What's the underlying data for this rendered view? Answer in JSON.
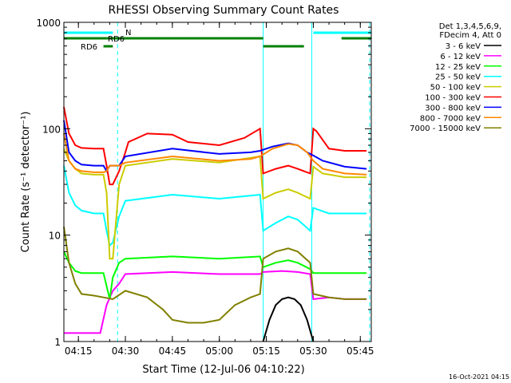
{
  "chart_data": {
    "type": "line",
    "title": "RHESSI Observing Summary Count Rates",
    "xlabel": "Start Time (12-Jul-06 04:10:22)",
    "ylabel": "Count Rate (s⁻¹ detector⁻¹)",
    "y_scale": "log",
    "ylim": [
      1,
      1000
    ],
    "xlim": [
      "04:10:22",
      "05:48:30"
    ],
    "x_ticks": [
      "04:15",
      "04:30",
      "04:45",
      "05:00",
      "05:15",
      "05:30",
      "05:45"
    ],
    "y_ticks": [
      "1",
      "10",
      "100",
      "1000"
    ],
    "legend_position": "right",
    "legend_header": [
      "Det 1,3,4,5,6,9,",
      "FDecim 4, Att 0"
    ],
    "series": [
      {
        "name": "3 - 6 keV",
        "color": "#000000",
        "x": [
          "05:14",
          "05:16",
          "05:18",
          "05:20",
          "05:22",
          "05:24",
          "05:26",
          "05:28",
          "05:30"
        ],
        "values": [
          1.0,
          1.6,
          2.2,
          2.5,
          2.6,
          2.5,
          2.2,
          1.6,
          1.0
        ]
      },
      {
        "name": "6 - 12 keV",
        "color": "#ff00ff",
        "x": [
          "04:10:22",
          "04:22",
          "04:24",
          "04:26",
          "04:28",
          "04:30",
          "04:45",
          "05:00",
          "05:13",
          "05:14",
          "05:20",
          "05:25",
          "05:29",
          "05:30",
          "05:35",
          "05:40",
          "05:47"
        ],
        "values": [
          1.2,
          1.2,
          2.2,
          3.0,
          3.5,
          4.3,
          4.5,
          4.3,
          4.3,
          4.5,
          4.6,
          4.5,
          4.3,
          2.5,
          2.6,
          2.5,
          2.5
        ]
      },
      {
        "name": "12 - 25 keV",
        "color": "#00ff00",
        "x": [
          "04:10:22",
          "04:12",
          "04:14",
          "04:16",
          "04:20",
          "04:23",
          "04:25",
          "04:26",
          "04:28",
          "04:30",
          "04:45",
          "05:00",
          "05:13",
          "05:14",
          "05:18",
          "05:22",
          "05:25",
          "05:29",
          "05:30",
          "05:35",
          "05:47"
        ],
        "values": [
          7.0,
          5.5,
          4.6,
          4.4,
          4.4,
          4.4,
          2.5,
          4.0,
          5.5,
          6.0,
          6.3,
          6.0,
          6.3,
          5.0,
          5.5,
          5.8,
          5.5,
          4.8,
          4.4,
          4.4,
          4.4
        ]
      },
      {
        "name": "25 - 50 keV",
        "color": "#00ffff",
        "x": [
          "04:10:22",
          "04:12",
          "04:14",
          "04:16",
          "04:20",
          "04:23",
          "04:24",
          "04:25",
          "04:26",
          "04:28",
          "04:30",
          "04:45",
          "05:00",
          "05:13",
          "05:14",
          "05:18",
          "05:22",
          "05:25",
          "05:29",
          "05:30",
          "05:35",
          "05:47"
        ],
        "values": [
          45,
          25,
          19,
          17,
          16,
          16,
          11,
          8.0,
          8.5,
          15,
          21,
          24,
          22,
          24,
          11,
          13,
          15,
          14,
          11,
          18,
          16,
          16
        ]
      },
      {
        "name": "50 - 100 keV",
        "color": "#cccc00",
        "x": [
          "04:10:22",
          "04:12",
          "04:14",
          "04:16",
          "04:20",
          "04:23",
          "04:24",
          "04:25",
          "04:26",
          "04:28",
          "04:30",
          "04:45",
          "05:00",
          "05:13",
          "05:14",
          "05:18",
          "05:22",
          "05:25",
          "05:29",
          "05:30",
          "05:33",
          "05:40",
          "05:47"
        ],
        "values": [
          65,
          50,
          42,
          38,
          37,
          37,
          25,
          6.0,
          6.0,
          30,
          45,
          52,
          48,
          55,
          22,
          25,
          27,
          25,
          22,
          44,
          38,
          35,
          35
        ]
      },
      {
        "name": "100 - 300 keV",
        "color": "#ff0000",
        "x": [
          "04:10:22",
          "04:12",
          "04:14",
          "04:16",
          "04:20",
          "04:23",
          "04:24",
          "04:25",
          "04:26",
          "04:28",
          "04:30",
          "04:31",
          "04:37",
          "04:45",
          "04:50",
          "05:00",
          "05:08",
          "05:13",
          "05:14",
          "05:18",
          "05:22",
          "05:25",
          "05:29",
          "05:30",
          "05:31",
          "05:35",
          "05:40",
          "05:47"
        ],
        "values": [
          160,
          90,
          70,
          66,
          65,
          65,
          45,
          30,
          30,
          40,
          60,
          75,
          90,
          88,
          75,
          70,
          82,
          100,
          38,
          42,
          45,
          42,
          38,
          100,
          95,
          65,
          62,
          62
        ]
      },
      {
        "name": "300 - 800 keV",
        "color": "#0000ff",
        "x": [
          "04:10:22",
          "04:12",
          "04:14",
          "04:16",
          "04:20",
          "04:23",
          "04:24",
          "04:25",
          "04:26",
          "04:28",
          "04:30",
          "04:45",
          "05:00",
          "05:10",
          "05:13",
          "05:17",
          "05:22",
          "05:25",
          "05:28",
          "05:30",
          "05:33",
          "05:40",
          "05:47"
        ],
        "values": [
          120,
          60,
          50,
          46,
          45,
          45,
          40,
          45,
          45,
          45,
          55,
          65,
          58,
          60,
          62,
          68,
          73,
          70,
          60,
          56,
          50,
          44,
          42
        ]
      },
      {
        "name": "800 - 7000 keV",
        "color": "#ff8800",
        "x": [
          "04:10:22",
          "04:12",
          "04:14",
          "04:16",
          "04:20",
          "04:23",
          "04:24",
          "04:25",
          "04:26",
          "04:28",
          "04:30",
          "04:45",
          "05:00",
          "05:10",
          "05:13",
          "05:17",
          "05:22",
          "05:25",
          "05:28",
          "05:30",
          "05:33",
          "05:40",
          "05:47"
        ],
        "values": [
          90,
          50,
          42,
          40,
          39,
          39,
          40,
          45,
          45,
          45,
          48,
          55,
          50,
          52,
          55,
          65,
          72,
          70,
          60,
          50,
          42,
          38,
          37
        ]
      },
      {
        "name": "7000 - 15000 keV",
        "color": "#808000",
        "x": [
          "04:10:22",
          "04:12",
          "04:14",
          "04:16",
          "04:20",
          "04:23",
          "04:26",
          "04:30",
          "04:37",
          "04:42",
          "04:45",
          "04:50",
          "04:55",
          "05:00",
          "05:05",
          "05:10",
          "05:13",
          "05:14",
          "05:18",
          "05:22",
          "05:25",
          "05:29",
          "05:30",
          "05:35",
          "05:40",
          "05:47"
        ],
        "values": [
          12,
          5.5,
          3.5,
          2.8,
          2.7,
          2.6,
          2.5,
          3.0,
          2.6,
          2.0,
          1.6,
          1.5,
          1.5,
          1.6,
          2.2,
          2.6,
          2.8,
          6.0,
          7.0,
          7.5,
          7.0,
          5.5,
          2.8,
          2.6,
          2.5,
          2.5
        ]
      }
    ],
    "state_bars": {
      "labels": [
        "RD6",
        "RD6",
        "N"
      ],
      "attenuator_in": [
        [
          "04:10:22",
          "04:26"
        ],
        [
          "05:30",
          "05:48:30"
        ]
      ],
      "rd6_upper": [
        [
          "04:10:22",
          "05:14"
        ],
        [
          "05:39",
          "05:48:30"
        ]
      ],
      "rd6_lower": [
        [
          "04:23",
          "04:26"
        ],
        [
          "05:14",
          "05:27"
        ]
      ],
      "vertical_markers_solid": [
        "05:14",
        "05:29:30"
      ],
      "vertical_markers_dashed": [
        "04:27:30",
        "05:48"
      ],
      "bar_colors": {
        "attenuator": "#00ffff",
        "rd6": "#008000",
        "marker": "#00ffff"
      }
    }
  },
  "footer": {
    "timestamp": "16-Oct-2021 04:15"
  }
}
